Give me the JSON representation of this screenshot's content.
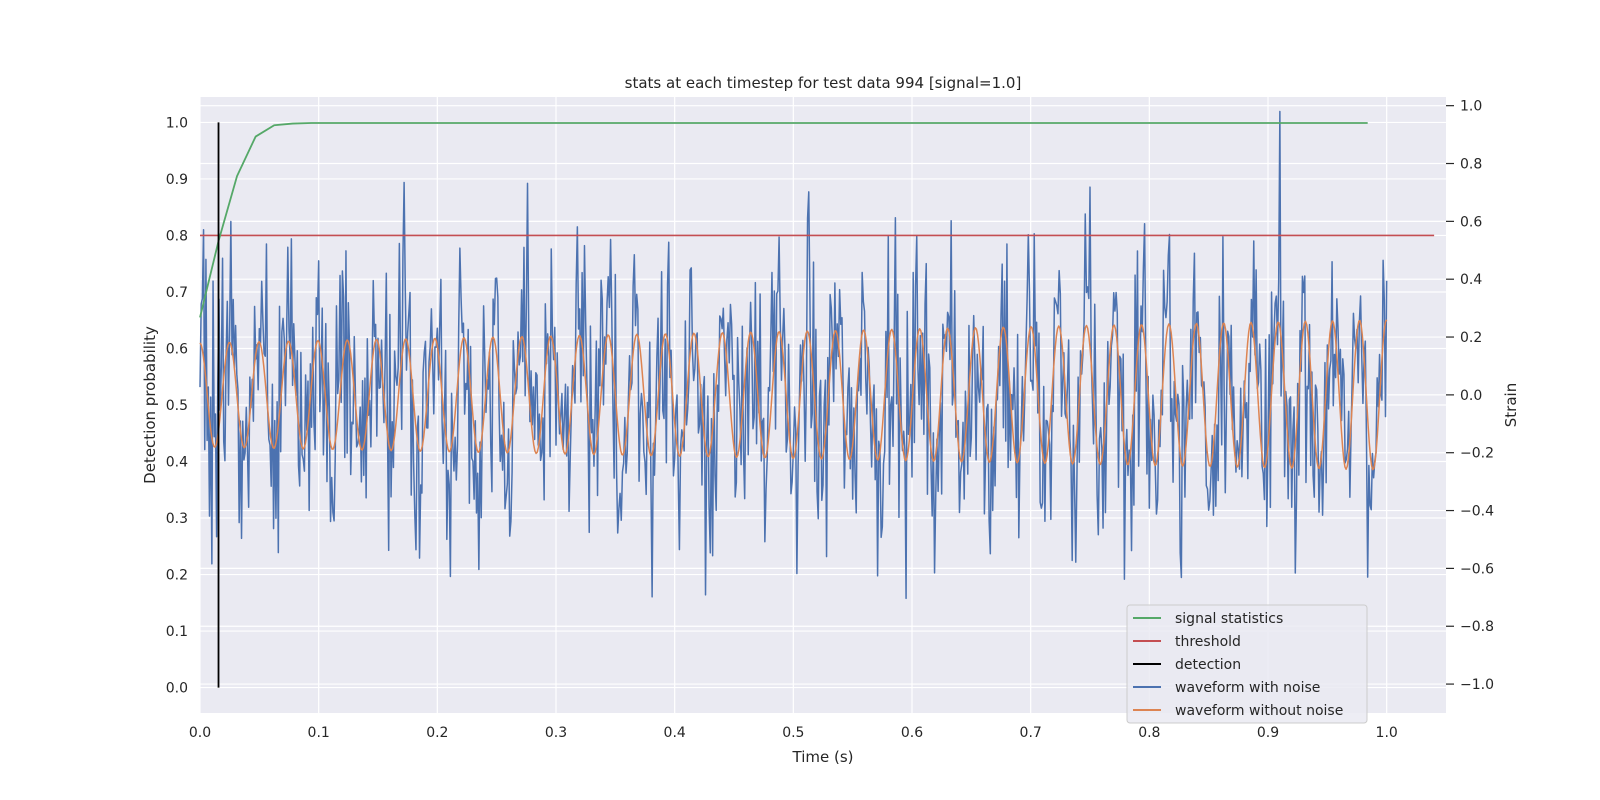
{
  "chart_data": {
    "type": "line",
    "title": "stats at each timestep for test data 994 [signal=1.0]",
    "xlabel": "Time (s)",
    "ylabel": "Detection probability",
    "y2label": "Strain",
    "xlim": [
      0.0,
      1.05
    ],
    "ylim": [
      -0.045,
      1.045
    ],
    "y2lim": [
      -1.1,
      1.03
    ],
    "xticks": [
      "0.0",
      "0.1",
      "0.2",
      "0.3",
      "0.4",
      "0.5",
      "0.6",
      "0.7",
      "0.8",
      "0.9",
      "1.0"
    ],
    "yticks": [
      "0.0",
      "0.1",
      "0.2",
      "0.3",
      "0.4",
      "0.5",
      "0.6",
      "0.7",
      "0.8",
      "0.9",
      "1.0"
    ],
    "y2ticks": [
      "−1.0",
      "−0.8",
      "−0.6",
      "−0.4",
      "−0.2",
      "0.0",
      "0.2",
      "0.4",
      "0.6",
      "0.8",
      "1.0"
    ],
    "grid": true,
    "legend_position": "lower-right",
    "series": [
      {
        "name": "signal statistics",
        "color": "#55a868",
        "axis": "left",
        "x": [
          0.0,
          0.0156,
          0.0312,
          0.0469,
          0.0625,
          0.0781,
          0.0938,
          0.125,
          0.25,
          0.5,
          0.75,
          0.984
        ],
        "y": [
          0.655,
          0.79,
          0.905,
          0.975,
          0.995,
          0.998,
          0.999,
          0.999,
          0.999,
          0.999,
          0.999,
          0.999
        ]
      },
      {
        "name": "threshold",
        "color": "#c44e52",
        "axis": "left",
        "x": [
          0.0,
          1.04
        ],
        "y": [
          0.8,
          0.8
        ]
      },
      {
        "name": "detection",
        "color": "#000000",
        "axis": "left",
        "x": [
          0.0156,
          0.0156
        ],
        "y": [
          0.0,
          1.0
        ]
      },
      {
        "name": "waveform with noise",
        "color": "#4c72b0",
        "axis": "right",
        "generated": "noisy waveform sampled over t = 0..1 s, amplitude range about -1.0 to 1.0 strain"
      },
      {
        "name": "waveform without noise",
        "color": "#dd8452",
        "axis": "right",
        "generated": "sinusoid over t = 0..1 s, frequency about 40 Hz, amplitude about 0.18 growing to 0.26 strain"
      }
    ]
  }
}
